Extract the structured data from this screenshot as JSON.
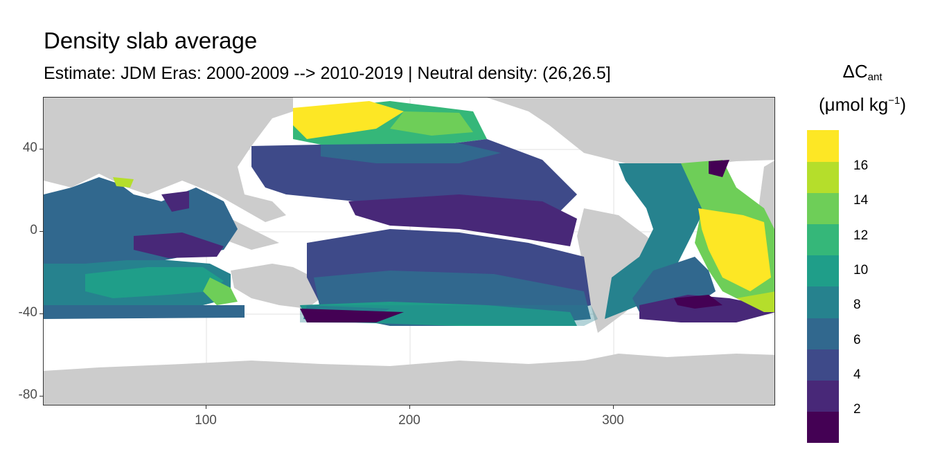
{
  "title": "Density slab average",
  "subtitle": "Estimate: JDM Eras: 2000-2009 --> 2010-2019 | Neutral density: (26,26.5]",
  "legend": {
    "title_main": "ΔC",
    "title_sub": "ant",
    "unit_open": "(μmol kg",
    "unit_sup": "−1",
    "unit_close": ")",
    "bins": [
      {
        "label": "2",
        "color": "#440154"
      },
      {
        "label": "4",
        "color": "#482878"
      },
      {
        "label": "",
        "color": "#3e4a89"
      },
      {
        "label": "6",
        "color": "#31688e"
      },
      {
        "label": "8",
        "color": "#26828e"
      },
      {
        "label": "10",
        "color": "#1f9e89"
      },
      {
        "label": "12",
        "color": "#35b779"
      },
      {
        "label": "14",
        "color": "#6ece58"
      },
      {
        "label": "16",
        "color": "#b5de2b"
      },
      {
        "label": "",
        "color": "#fde725"
      }
    ]
  },
  "axes": {
    "x_ticks": [
      "100",
      "200",
      "300"
    ],
    "y_ticks": [
      "40",
      "0",
      "-40",
      "-80"
    ]
  },
  "colors": {
    "land": "#cccccc",
    "grid": "#ebebeb",
    "panel_border": "#333333"
  }
}
